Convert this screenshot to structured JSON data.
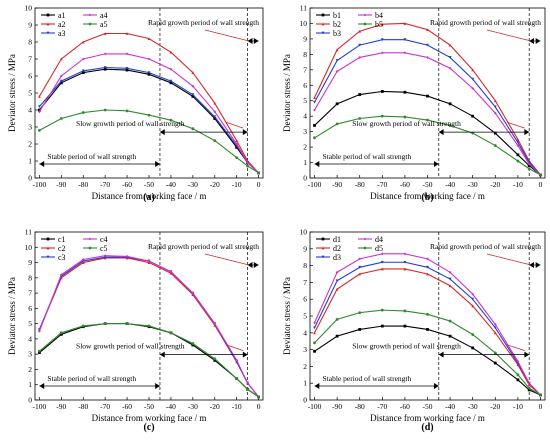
{
  "chart_data": [
    {
      "type": "line",
      "panel_label": "(a)",
      "xlabel": "Distance from working face / m",
      "ylabel": "Deviator stress / MPa",
      "xlim": [
        -102,
        2
      ],
      "ylim": [
        0,
        10
      ],
      "x_ticks": [
        -100,
        -90,
        -80,
        -70,
        -60,
        -50,
        -40,
        -30,
        -20,
        -10,
        0
      ],
      "y_ticks": [
        0,
        1,
        2,
        3,
        4,
        5,
        6,
        7,
        8,
        9,
        10
      ],
      "grid": false,
      "legend_position": "top-left",
      "x": [
        -100,
        -90,
        -80,
        -70,
        -60,
        -50,
        -40,
        -30,
        -20,
        -10,
        -5,
        0
      ],
      "series": [
        {
          "name": "a1",
          "color": "#000000",
          "values": [
            4.0,
            5.6,
            6.2,
            6.4,
            6.35,
            6.1,
            5.6,
            4.8,
            3.5,
            1.8,
            0.9,
            0.3
          ]
        },
        {
          "name": "a2",
          "color": "#d62828",
          "values": [
            4.8,
            7.0,
            8.0,
            8.5,
            8.5,
            8.2,
            7.4,
            6.2,
            4.4,
            2.2,
            1.0,
            0.3
          ]
        },
        {
          "name": "a3",
          "color": "#1f3fcf",
          "values": [
            4.2,
            5.7,
            6.3,
            6.5,
            6.45,
            6.2,
            5.7,
            4.9,
            3.6,
            1.9,
            0.9,
            0.3
          ]
        },
        {
          "name": "a4",
          "color": "#cc33cc",
          "values": [
            3.9,
            6.0,
            7.0,
            7.3,
            7.3,
            7.0,
            6.4,
            5.4,
            3.9,
            2.0,
            0.9,
            0.3
          ]
        },
        {
          "name": "a5",
          "color": "#2e8b2e",
          "values": [
            2.8,
            3.5,
            3.85,
            4.0,
            3.95,
            3.7,
            3.4,
            2.9,
            2.2,
            1.2,
            0.7,
            0.3
          ]
        }
      ],
      "annotations": [
        {
          "text": "Rapid growth period of wall strength",
          "type": "span",
          "from": -5,
          "to": 0
        },
        {
          "text": "Slow growth period of wall strength",
          "type": "span",
          "from": -45,
          "to": -5
        },
        {
          "text": "Stable period of wall strength",
          "type": "span",
          "from": -100,
          "to": -45
        }
      ],
      "divider_lines_x": [
        -45,
        -5
      ]
    },
    {
      "type": "line",
      "panel_label": "(b)",
      "xlabel": "Distance from working face / m",
      "ylabel": "Deviator stress / MPa",
      "xlim": [
        -102,
        2
      ],
      "ylim": [
        0,
        11
      ],
      "x_ticks": [
        -100,
        -90,
        -80,
        -70,
        -60,
        -50,
        -40,
        -30,
        -20,
        -10,
        0
      ],
      "y_ticks": [
        0,
        1,
        2,
        3,
        4,
        5,
        6,
        7,
        8,
        9,
        10,
        11
      ],
      "grid": false,
      "legend_position": "top-left",
      "x": [
        -100,
        -90,
        -80,
        -70,
        -60,
        -50,
        -40,
        -30,
        -20,
        -10,
        -5,
        0
      ],
      "series": [
        {
          "name": "b1",
          "color": "#000000",
          "values": [
            3.4,
            4.8,
            5.4,
            5.6,
            5.55,
            5.3,
            4.8,
            4.0,
            2.9,
            1.5,
            0.8,
            0.2
          ]
        },
        {
          "name": "b2",
          "color": "#d62828",
          "values": [
            5.2,
            8.3,
            9.5,
            9.95,
            10.0,
            9.6,
            8.6,
            7.0,
            5.0,
            2.5,
            1.1,
            0.2
          ]
        },
        {
          "name": "b3",
          "color": "#1f3fcf",
          "values": [
            4.9,
            7.6,
            8.6,
            8.95,
            8.95,
            8.6,
            7.8,
            6.4,
            4.6,
            2.3,
            1.0,
            0.2
          ]
        },
        {
          "name": "b4",
          "color": "#cc33cc",
          "values": [
            4.4,
            6.9,
            7.8,
            8.1,
            8.1,
            7.8,
            7.1,
            5.8,
            4.2,
            2.1,
            0.9,
            0.2
          ]
        },
        {
          "name": "b5",
          "color": "#2e8b2e",
          "values": [
            2.6,
            3.5,
            3.85,
            4.0,
            3.95,
            3.75,
            3.4,
            2.9,
            2.1,
            1.1,
            0.6,
            0.2
          ]
        }
      ],
      "annotations": [
        {
          "text": "Rapid growth period of wall strength",
          "type": "span",
          "from": -5,
          "to": 0
        },
        {
          "text": "Slow growth period of wall strength",
          "type": "span",
          "from": -45,
          "to": -5
        },
        {
          "text": "Stable period of wall strength",
          "type": "span",
          "from": -100,
          "to": -45
        }
      ],
      "divider_lines_x": [
        -45,
        -5
      ]
    },
    {
      "type": "line",
      "panel_label": "(c)",
      "xlabel": "Distance from working face / m",
      "ylabel": "Deviator stress / MPa",
      "xlim": [
        -102,
        2
      ],
      "ylim": [
        0,
        11
      ],
      "x_ticks": [
        -100,
        -90,
        -80,
        -70,
        -60,
        -50,
        -40,
        -30,
        -20,
        -10,
        0
      ],
      "y_ticks": [
        0,
        1,
        2,
        3,
        4,
        5,
        6,
        7,
        8,
        9,
        10,
        11
      ],
      "grid": false,
      "legend_position": "top-left",
      "x": [
        -100,
        -90,
        -80,
        -70,
        -60,
        -50,
        -40,
        -30,
        -20,
        -10,
        -5,
        0
      ],
      "series": [
        {
          "name": "c1",
          "color": "#000000",
          "values": [
            3.1,
            4.3,
            4.8,
            5.0,
            5.0,
            4.8,
            4.4,
            3.6,
            2.6,
            1.4,
            0.7,
            0.2
          ]
        },
        {
          "name": "c2",
          "color": "#d62828",
          "values": [
            4.6,
            8.0,
            9.0,
            9.3,
            9.3,
            9.0,
            8.3,
            6.9,
            4.9,
            2.5,
            1.1,
            0.2
          ]
        },
        {
          "name": "c3",
          "color": "#1f3fcf",
          "values": [
            4.6,
            8.1,
            9.1,
            9.35,
            9.35,
            9.1,
            8.4,
            7.0,
            5.0,
            2.5,
            1.1,
            0.2
          ]
        },
        {
          "name": "c4",
          "color": "#cc33cc",
          "values": [
            4.5,
            8.2,
            9.2,
            9.45,
            9.4,
            9.1,
            8.4,
            7.0,
            5.0,
            2.6,
            1.1,
            0.2
          ]
        },
        {
          "name": "c5",
          "color": "#2e8b2e",
          "values": [
            3.2,
            4.4,
            4.85,
            5.0,
            5.0,
            4.85,
            4.4,
            3.7,
            2.7,
            1.4,
            0.7,
            0.2
          ]
        }
      ],
      "annotations": [
        {
          "text": "Rapid growth period of wall strength",
          "type": "span",
          "from": -5,
          "to": 0
        },
        {
          "text": "Slow growth period of wall strength",
          "type": "span",
          "from": -45,
          "to": -5
        },
        {
          "text": "Stable period of wall strength",
          "type": "span",
          "from": -100,
          "to": -45
        }
      ],
      "divider_lines_x": [
        -45,
        -5
      ]
    },
    {
      "type": "line",
      "panel_label": "(d)",
      "xlabel": "Distance from working face / m",
      "ylabel": "Deviator stress / MPa",
      "xlim": [
        -102,
        2
      ],
      "ylim": [
        0,
        10
      ],
      "x_ticks": [
        -100,
        -90,
        -80,
        -70,
        -60,
        -50,
        -40,
        -30,
        -20,
        -10,
        0
      ],
      "y_ticks": [
        0,
        1,
        2,
        3,
        4,
        5,
        6,
        7,
        8,
        9,
        10
      ],
      "grid": false,
      "legend_position": "top-left",
      "x": [
        -100,
        -90,
        -80,
        -70,
        -60,
        -50,
        -40,
        -30,
        -20,
        -10,
        -5,
        0
      ],
      "series": [
        {
          "name": "d1",
          "color": "#000000",
          "values": [
            2.9,
            3.8,
            4.2,
            4.4,
            4.4,
            4.2,
            3.8,
            3.1,
            2.2,
            1.2,
            0.6,
            0.3
          ]
        },
        {
          "name": "d2",
          "color": "#d62828",
          "values": [
            4.0,
            6.6,
            7.5,
            7.8,
            7.8,
            7.5,
            6.8,
            5.6,
            4.0,
            2.1,
            0.9,
            0.3
          ]
        },
        {
          "name": "d3",
          "color": "#1f3fcf",
          "values": [
            4.3,
            7.1,
            7.9,
            8.2,
            8.2,
            7.9,
            7.2,
            6.0,
            4.3,
            2.2,
            1.0,
            0.3
          ]
        },
        {
          "name": "d4",
          "color": "#cc33cc",
          "values": [
            4.6,
            7.6,
            8.4,
            8.7,
            8.7,
            8.4,
            7.6,
            6.3,
            4.5,
            2.3,
            1.0,
            0.3
          ]
        },
        {
          "name": "d5",
          "color": "#2e8b2e",
          "values": [
            3.4,
            4.8,
            5.2,
            5.35,
            5.3,
            5.1,
            4.7,
            3.9,
            2.8,
            1.5,
            0.7,
            0.3
          ]
        }
      ],
      "annotations": [
        {
          "text": "Rapid growth period of wall strength",
          "type": "span",
          "from": -5,
          "to": 0
        },
        {
          "text": "Slow growth period of wall strength",
          "type": "span",
          "from": -45,
          "to": -5
        },
        {
          "text": "Stable period of wall strength",
          "type": "span",
          "from": -100,
          "to": -45
        }
      ],
      "divider_lines_x": [
        -45,
        -5
      ]
    }
  ]
}
